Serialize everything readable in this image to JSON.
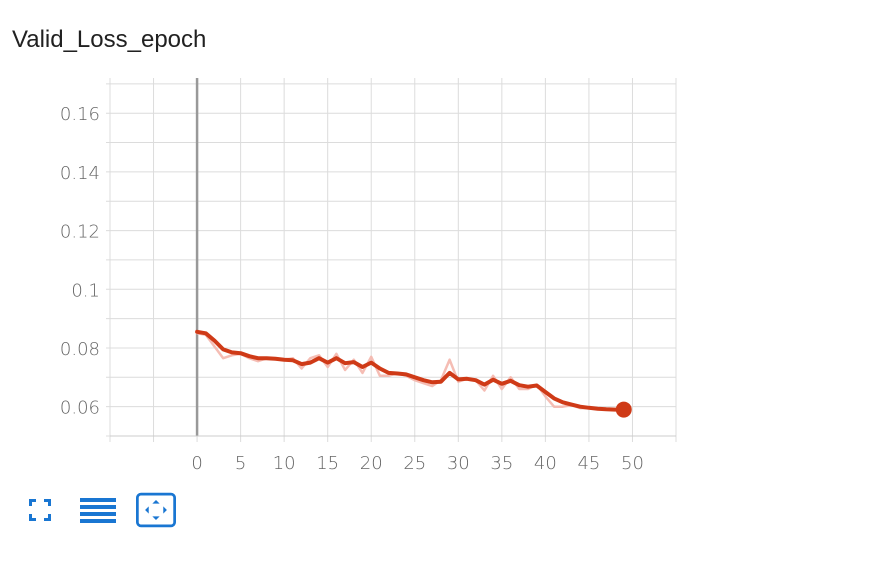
{
  "chart_data": {
    "type": "line",
    "title": "Valid_Loss_epoch",
    "xlabel": "",
    "ylabel": "",
    "xlim": [
      -10,
      55
    ],
    "ylim": [
      0.05,
      0.172
    ],
    "x_ticks": [
      0,
      5,
      10,
      15,
      20,
      25,
      30,
      35,
      40,
      45,
      50
    ],
    "x_tick_labels": [
      "0",
      "5",
      "10",
      "15",
      "20",
      "25",
      "30",
      "35",
      "40",
      "45",
      "50"
    ],
    "y_ticks": [
      0.06,
      0.08,
      0.1,
      0.12,
      0.14,
      0.16
    ],
    "y_tick_labels": [
      "0.06",
      "0.08",
      "0.1",
      "0.12",
      "0.14",
      "0.16"
    ],
    "grid": true,
    "series": [
      {
        "name": "raw",
        "color": "#f4b6ac",
        "x": [
          0,
          1,
          2,
          3,
          4,
          5,
          6,
          7,
          8,
          9,
          10,
          11,
          12,
          13,
          14,
          15,
          16,
          17,
          18,
          19,
          20,
          21,
          22,
          23,
          24,
          25,
          26,
          27,
          28,
          29,
          30,
          31,
          32,
          33,
          34,
          35,
          36,
          37,
          38,
          39,
          40,
          41,
          42,
          43,
          44,
          45,
          46,
          47,
          48,
          49
        ],
        "y": [
          0.085,
          0.0845,
          0.0805,
          0.0765,
          0.0775,
          0.078,
          0.0765,
          0.0755,
          0.0765,
          0.0765,
          0.076,
          0.0765,
          0.073,
          0.0765,
          0.0775,
          0.0735,
          0.078,
          0.0725,
          0.076,
          0.0715,
          0.077,
          0.0705,
          0.0705,
          0.0715,
          0.0705,
          0.069,
          0.068,
          0.067,
          0.069,
          0.076,
          0.0685,
          0.0695,
          0.069,
          0.0655,
          0.0705,
          0.066,
          0.07,
          0.066,
          0.066,
          0.0675,
          0.0635,
          0.06,
          0.06,
          0.0605,
          0.0595,
          0.0595,
          0.0595,
          0.059,
          0.059,
          0.059
        ]
      },
      {
        "name": "smoothed",
        "color": "#cf3a17",
        "x": [
          0,
          1,
          2,
          3,
          4,
          5,
          6,
          7,
          8,
          9,
          10,
          11,
          12,
          13,
          14,
          15,
          16,
          17,
          18,
          19,
          20,
          21,
          22,
          23,
          24,
          25,
          26,
          27,
          28,
          29,
          30,
          31,
          32,
          33,
          34,
          35,
          36,
          37,
          38,
          39,
          40,
          41,
          42,
          43,
          44,
          45,
          46,
          47,
          48,
          49
        ],
        "y": [
          0.0855,
          0.085,
          0.0825,
          0.0795,
          0.0785,
          0.0782,
          0.0772,
          0.0765,
          0.0765,
          0.0763,
          0.076,
          0.0758,
          0.0745,
          0.075,
          0.0765,
          0.075,
          0.0765,
          0.0748,
          0.0752,
          0.0735,
          0.075,
          0.073,
          0.0715,
          0.0713,
          0.071,
          0.07,
          0.069,
          0.0683,
          0.0685,
          0.0715,
          0.0693,
          0.0695,
          0.069,
          0.0675,
          0.0692,
          0.0678,
          0.0688,
          0.0673,
          0.0668,
          0.0672,
          0.065,
          0.0628,
          0.0615,
          0.0607,
          0.06,
          0.0596,
          0.0593,
          0.0591,
          0.059,
          0.059
        ]
      }
    ],
    "end_marker": {
      "x": 49,
      "y": 0.059,
      "color": "#cf3a17"
    }
  },
  "toolbar": {
    "icons": [
      "fullscreen-icon",
      "list-icon",
      "fit-domain-icon"
    ],
    "accent": "#1976d2"
  }
}
